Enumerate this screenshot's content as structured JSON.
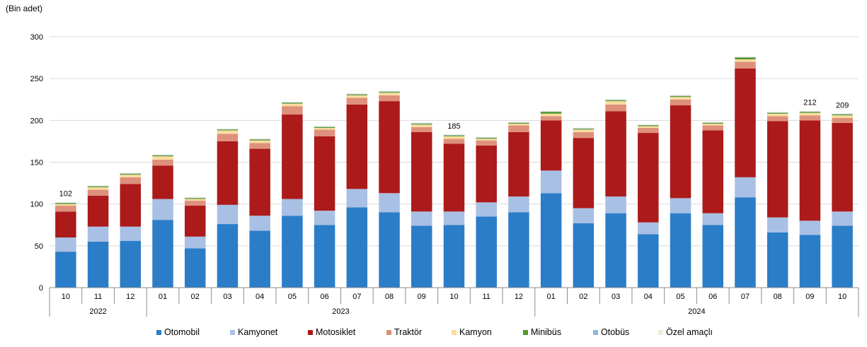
{
  "chart_data": {
    "type": "bar",
    "stacked": true,
    "title": "",
    "ylabel": "(Bin adet)",
    "xlabel": "",
    "ylim": [
      0,
      300
    ],
    "yticks": [
      0,
      50,
      100,
      150,
      200,
      250,
      300
    ],
    "categories": [
      "10",
      "11",
      "12",
      "01",
      "02",
      "03",
      "04",
      "05",
      "06",
      "07",
      "08",
      "09",
      "10",
      "11",
      "12",
      "01",
      "02",
      "03",
      "04",
      "05",
      "06",
      "07",
      "08",
      "09",
      "10"
    ],
    "years": [
      {
        "label": "2022",
        "start": 0,
        "end": 2
      },
      {
        "label": "2023",
        "start": 3,
        "end": 14
      },
      {
        "label": "2024",
        "start": 15,
        "end": 24
      }
    ],
    "series": [
      {
        "name": "Otomobil",
        "color": "#2b7dc8",
        "values": [
          43,
          55,
          56,
          81,
          47,
          76,
          68,
          86,
          75,
          96,
          90,
          74,
          75,
          85,
          90,
          113,
          77,
          89,
          64,
          89,
          75,
          108,
          66,
          63,
          74
        ]
      },
      {
        "name": "Kamyonet",
        "color": "#a8c0e4",
        "values": [
          17,
          18,
          17,
          25,
          14,
          23,
          18,
          20,
          17,
          22,
          23,
          17,
          16,
          17,
          19,
          27,
          18,
          20,
          14,
          18,
          14,
          24,
          18,
          17,
          17
        ]
      },
      {
        "name": "Motosiklet",
        "color": "#ac1a1a",
        "values": [
          31,
          37,
          51,
          40,
          37,
          76,
          80,
          101,
          89,
          101,
          110,
          95,
          81,
          68,
          77,
          60,
          84,
          102,
          107,
          111,
          99,
          130,
          115,
          120,
          106
        ]
      },
      {
        "name": "Traktör",
        "color": "#de907c",
        "values": [
          7,
          7,
          8,
          7,
          6,
          9,
          7,
          10,
          8,
          8,
          7,
          6,
          6,
          6,
          8,
          5,
          7,
          8,
          6,
          7,
          6,
          8,
          6,
          6,
          6
        ]
      },
      {
        "name": "Kamyon",
        "color": "#fcdc9e",
        "values": [
          2,
          3,
          3,
          4,
          2,
          4,
          3,
          3,
          2,
          3,
          3,
          3,
          3,
          2,
          2,
          3,
          3,
          4,
          2,
          3,
          2,
          3,
          3,
          3,
          3
        ]
      },
      {
        "name": "Minibüs",
        "color": "#52982d",
        "values": [
          1,
          1,
          1,
          1,
          1,
          1,
          1,
          1,
          1,
          1,
          1,
          1,
          1,
          1,
          1,
          2,
          1,
          1,
          1,
          1,
          1,
          2,
          1,
          1,
          1
        ]
      },
      {
        "name": "Otobüs",
        "color": "#92b5dc",
        "values": [
          0.5,
          0.5,
          0.5,
          0.5,
          0.5,
          0.5,
          0.5,
          0.5,
          0.5,
          0.5,
          0.5,
          0.5,
          0.5,
          0.5,
          0.5,
          0.5,
          0.5,
          0.5,
          0.5,
          0.5,
          0.5,
          0.5,
          0.5,
          0.5,
          0.5
        ]
      },
      {
        "name": "Özel amaçlı",
        "color": "#eeeed8",
        "values": [
          1,
          1,
          1,
          1,
          1,
          1,
          1,
          1,
          1,
          1,
          1,
          1,
          1,
          1,
          1,
          1,
          1,
          1,
          1,
          1,
          1,
          1,
          1,
          1,
          1
        ]
      }
    ],
    "annotations": [
      {
        "index": 0,
        "text": "102"
      },
      {
        "index": 12,
        "text": "185"
      },
      {
        "index": 23,
        "text": "212"
      },
      {
        "index": 24,
        "text": "209"
      }
    ],
    "legend_position": "bottom"
  }
}
